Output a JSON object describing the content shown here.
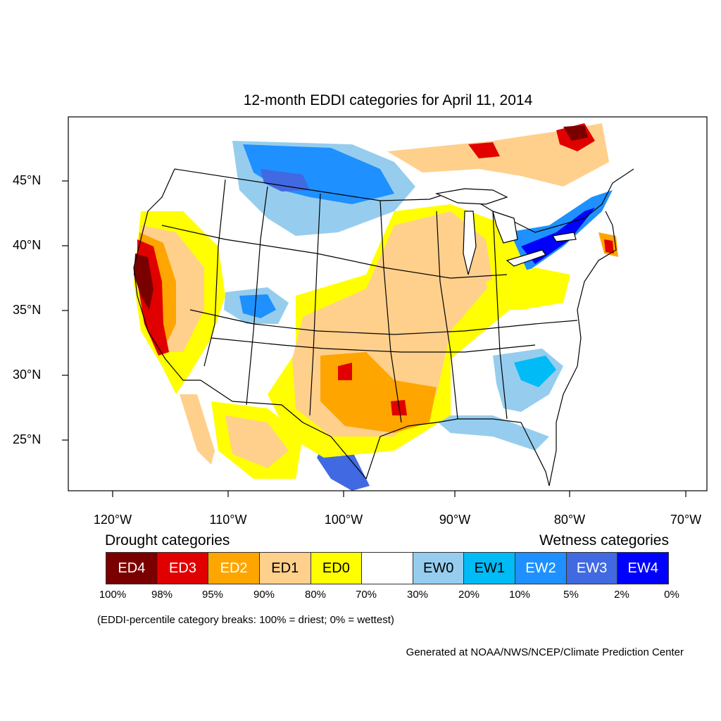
{
  "map": {
    "title": "12-month EDDI categories for April 11, 2014",
    "lat_labels": [
      "45°N",
      "40°N",
      "35°N",
      "30°N",
      "25°N"
    ],
    "lon_labels": [
      "120°W",
      "110°W",
      "100°W",
      "90°W",
      "80°W",
      "70°W"
    ],
    "colors": {
      "ED4": "#7a0000",
      "ED3": "#e00000",
      "ED2": "#ffa500",
      "ED1": "#ffd08c",
      "ED0": "#ffff00",
      "neutral": "#ffffff",
      "EW0": "#96cdee",
      "EW1": "#00bbf5",
      "EW2": "#1e90ff",
      "EW3": "#4169e1",
      "EW4": "#0000ff"
    }
  },
  "legend": {
    "drought_title": "Drought categories",
    "wetness_title": "Wetness categories",
    "categories": [
      {
        "label": "ED4",
        "color": "#7a0000",
        "text_color": "#ffffff"
      },
      {
        "label": "ED3",
        "color": "#e00000",
        "text_color": "#ffffff"
      },
      {
        "label": "ED2",
        "color": "#ffa500",
        "text_color": "#ffffff"
      },
      {
        "label": "ED1",
        "color": "#ffd08c",
        "text_color": "#000000"
      },
      {
        "label": "ED0",
        "color": "#ffff00",
        "text_color": "#000000"
      },
      {
        "label": "",
        "color": "#ffffff",
        "text_color": "#000000"
      },
      {
        "label": "EW0",
        "color": "#96cdee",
        "text_color": "#000000"
      },
      {
        "label": "EW1",
        "color": "#00bbf5",
        "text_color": "#000000"
      },
      {
        "label": "EW2",
        "color": "#1e90ff",
        "text_color": "#ffffff"
      },
      {
        "label": "EW3",
        "color": "#4169e1",
        "text_color": "#ffffff"
      },
      {
        "label": "EW4",
        "color": "#0000ff",
        "text_color": "#ffffff"
      }
    ],
    "breaks": [
      "100%",
      "98%",
      "95%",
      "90%",
      "80%",
      "70%",
      "30%",
      "20%",
      "10%",
      "5%",
      "2%",
      "0%"
    ],
    "note": "(EDDI-percentile category breaks: 100% = driest; 0% = wettest)"
  },
  "credit": "Generated at NOAA/NWS/NCEP/Climate Prediction Center"
}
